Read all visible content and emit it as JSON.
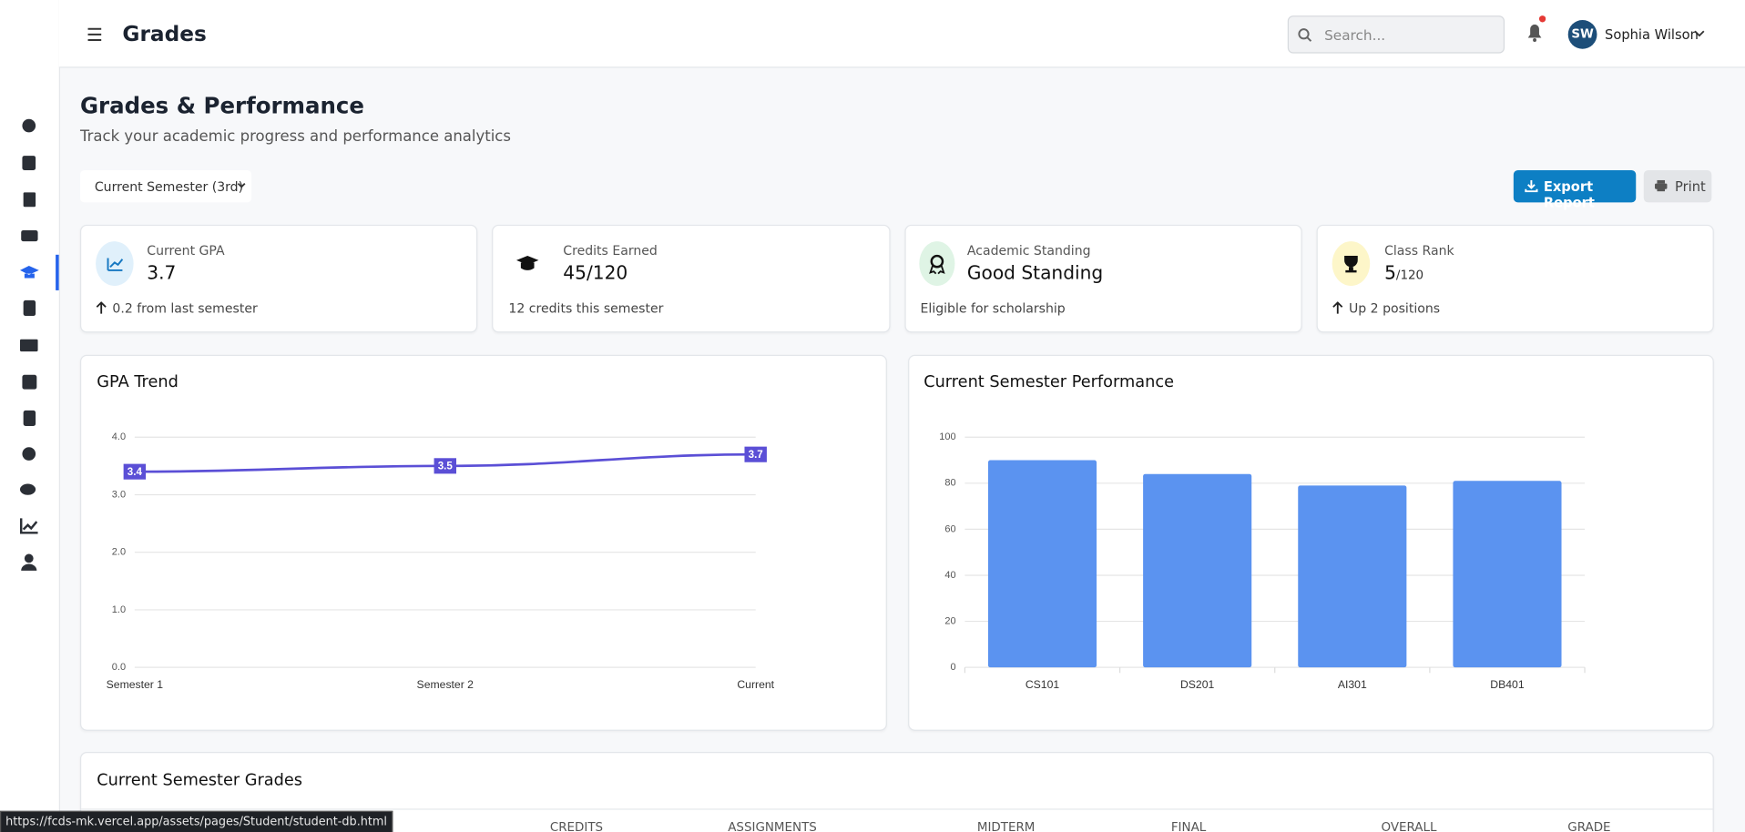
{
  "header": {
    "title": "Grades",
    "search_placeholder": "Search...",
    "user_initials": "SW",
    "user_name": "Sophia Wilson"
  },
  "page": {
    "title": "Grades & Performance",
    "subtitle": "Track your academic progress and performance analytics",
    "semester_select": "Current Semester (3rd)",
    "export_button": "Export Report",
    "print_button": "Print"
  },
  "cards": [
    {
      "label": "Current GPA",
      "value": "3.7",
      "note": "0.2 from last semester"
    },
    {
      "label": "Credits Earned",
      "value": "45/120",
      "note": "12 credits this semester"
    },
    {
      "label": "Academic Standing",
      "value": "Good Standing",
      "note": "Eligible for scholarship"
    },
    {
      "label": "Class Rank",
      "value": "5",
      "value_suffix": "/120",
      "note": "Up 2 positions"
    }
  ],
  "chart_data": [
    {
      "type": "line",
      "title": "GPA Trend",
      "categories": [
        "Semester 1",
        "Semester 2",
        "Current"
      ],
      "values": [
        3.4,
        3.5,
        3.7
      ],
      "color": "#5b4fd6",
      "ylim": [
        0,
        4
      ],
      "yticks": [
        {
          "value": 0,
          "label": "0.0"
        },
        {
          "value": 1,
          "label": "1.0"
        },
        {
          "value": 2,
          "label": "2.0"
        },
        {
          "value": 3,
          "label": "3.0"
        },
        {
          "value": 4,
          "label": "4.0"
        }
      ],
      "grid": true
    },
    {
      "type": "bar",
      "title": "Current Semester Performance",
      "categories": [
        "CS101",
        "DS201",
        "AI301",
        "DB401"
      ],
      "values": [
        90,
        84,
        79,
        81
      ],
      "color": "#5b93f0",
      "ylim": [
        0,
        100
      ],
      "yticks": [
        0,
        20,
        40,
        60,
        80,
        100
      ],
      "grid": true
    }
  ],
  "table": {
    "title": "Current Semester Grades",
    "columns": [
      "CREDITS",
      "ASSIGNMENTS",
      "MIDTERM",
      "FINAL",
      "OVERALL",
      "GRADE"
    ]
  },
  "status_bar": {
    "url": "https://fcds-mk.vercel.app/assets/pages/Student/student-db.html"
  }
}
